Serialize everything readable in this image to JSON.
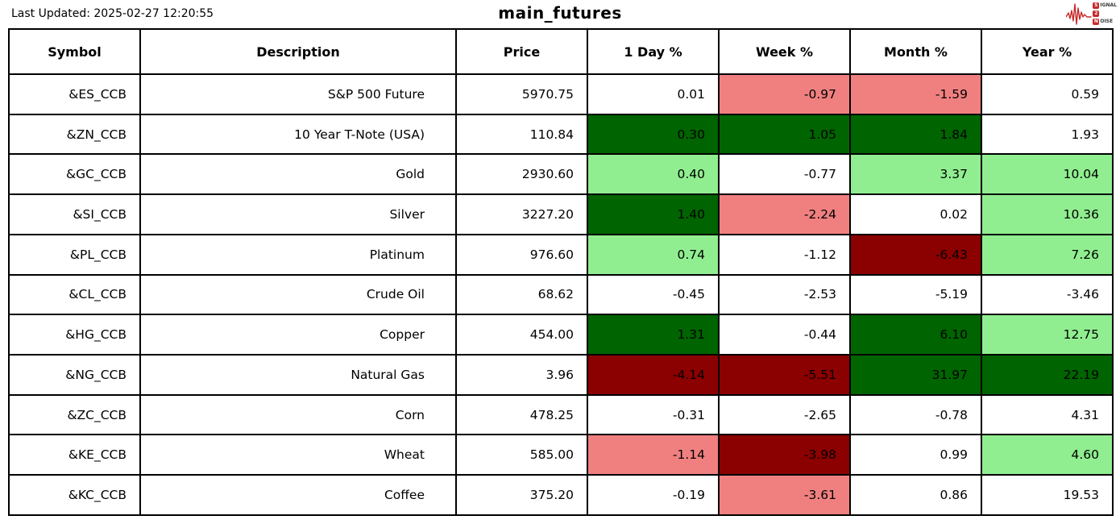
{
  "header": {
    "last_updated": "Last Updated: 2025-02-27 12:20:55",
    "title": "main_futures",
    "logo": {
      "brand_color": "#c62828",
      "lines": [
        {
          "badge": "S",
          "rest": "IGNAL"
        },
        {
          "badge": "2",
          "rest": ""
        },
        {
          "badge": "N",
          "rest": "OISE"
        }
      ]
    }
  },
  "chart_data": {
    "type": "table",
    "title": "main_futures",
    "columns": [
      "Symbol",
      "Description",
      "Price",
      "1 Day %",
      "Week %",
      "Month %",
      "Year %"
    ],
    "color_legend": {
      "none": "#FFFFFF",
      "light_green": "#90EE90",
      "dark_green": "#006400",
      "light_red": "#F08080",
      "dark_red": "#8B0000"
    },
    "rows": [
      {
        "symbol": "&ES_CCB",
        "description": "S&P 500 Future",
        "price": "5970.75",
        "pct": [
          {
            "v": "0.01",
            "c": "none"
          },
          {
            "v": "-0.97",
            "c": "light_red"
          },
          {
            "v": "-1.59",
            "c": "light_red"
          },
          {
            "v": "0.59",
            "c": "none"
          }
        ]
      },
      {
        "symbol": "&ZN_CCB",
        "description": "10 Year T-Note (USA)",
        "price": "110.84",
        "pct": [
          {
            "v": "0.30",
            "c": "dark_green"
          },
          {
            "v": "1.05",
            "c": "dark_green"
          },
          {
            "v": "1.84",
            "c": "dark_green"
          },
          {
            "v": "1.93",
            "c": "none"
          }
        ]
      },
      {
        "symbol": "&GC_CCB",
        "description": "Gold",
        "price": "2930.60",
        "pct": [
          {
            "v": "0.40",
            "c": "light_green"
          },
          {
            "v": "-0.77",
            "c": "none"
          },
          {
            "v": "3.37",
            "c": "light_green"
          },
          {
            "v": "10.04",
            "c": "light_green"
          }
        ]
      },
      {
        "symbol": "&SI_CCB",
        "description": "Silver",
        "price": "3227.20",
        "pct": [
          {
            "v": "1.40",
            "c": "dark_green"
          },
          {
            "v": "-2.24",
            "c": "light_red"
          },
          {
            "v": "0.02",
            "c": "none"
          },
          {
            "v": "10.36",
            "c": "light_green"
          }
        ]
      },
      {
        "symbol": "&PL_CCB",
        "description": "Platinum",
        "price": "976.60",
        "pct": [
          {
            "v": "0.74",
            "c": "light_green"
          },
          {
            "v": "-1.12",
            "c": "none"
          },
          {
            "v": "-6.43",
            "c": "dark_red"
          },
          {
            "v": "7.26",
            "c": "light_green"
          }
        ]
      },
      {
        "symbol": "&CL_CCB",
        "description": "Crude Oil",
        "price": "68.62",
        "pct": [
          {
            "v": "-0.45",
            "c": "none"
          },
          {
            "v": "-2.53",
            "c": "none"
          },
          {
            "v": "-5.19",
            "c": "none"
          },
          {
            "v": "-3.46",
            "c": "none"
          }
        ]
      },
      {
        "symbol": "&HG_CCB",
        "description": "Copper",
        "price": "454.00",
        "pct": [
          {
            "v": "1.31",
            "c": "dark_green"
          },
          {
            "v": "-0.44",
            "c": "none"
          },
          {
            "v": "6.10",
            "c": "dark_green"
          },
          {
            "v": "12.75",
            "c": "light_green"
          }
        ]
      },
      {
        "symbol": "&NG_CCB",
        "description": "Natural Gas",
        "price": "3.96",
        "pct": [
          {
            "v": "-4.14",
            "c": "dark_red"
          },
          {
            "v": "-5.51",
            "c": "dark_red"
          },
          {
            "v": "31.97",
            "c": "dark_green"
          },
          {
            "v": "22.19",
            "c": "dark_green"
          }
        ]
      },
      {
        "symbol": "&ZC_CCB",
        "description": "Corn",
        "price": "478.25",
        "pct": [
          {
            "v": "-0.31",
            "c": "none"
          },
          {
            "v": "-2.65",
            "c": "none"
          },
          {
            "v": "-0.78",
            "c": "none"
          },
          {
            "v": "4.31",
            "c": "none"
          }
        ]
      },
      {
        "symbol": "&KE_CCB",
        "description": "Wheat",
        "price": "585.00",
        "pct": [
          {
            "v": "-1.14",
            "c": "light_red"
          },
          {
            "v": "-3.98",
            "c": "dark_red"
          },
          {
            "v": "0.99",
            "c": "none"
          },
          {
            "v": "4.60",
            "c": "light_green"
          }
        ]
      },
      {
        "symbol": "&KC_CCB",
        "description": "Coffee",
        "price": "375.20",
        "pct": [
          {
            "v": "-0.19",
            "c": "none"
          },
          {
            "v": "-3.61",
            "c": "light_red"
          },
          {
            "v": "0.86",
            "c": "none"
          },
          {
            "v": "19.53",
            "c": "none"
          }
        ]
      }
    ]
  }
}
